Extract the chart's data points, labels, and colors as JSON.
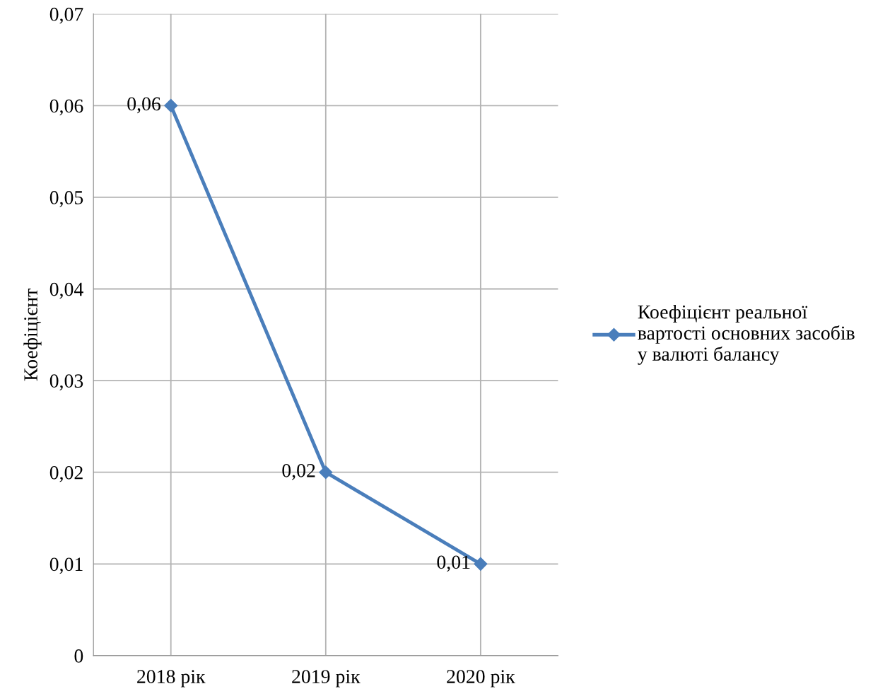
{
  "chart_data": {
    "type": "line",
    "ylabel": "Коефіцієнт",
    "categories": [
      "2018 рік",
      "2019 рік",
      "2020 рік"
    ],
    "series": [
      {
        "name": "Коефіцієнт реальної вартості основних засобів у валюті балансу",
        "color": "#4a7ebb",
        "values": [
          0.06,
          0.02,
          0.01
        ],
        "value_labels": [
          "0,06",
          "0,02",
          "0,01"
        ]
      }
    ],
    "ylim": [
      0,
      0.07
    ],
    "yticks": [
      {
        "value": 0,
        "label": "0"
      },
      {
        "value": 0.01,
        "label": "0,01"
      },
      {
        "value": 0.02,
        "label": "0,02"
      },
      {
        "value": 0.03,
        "label": "0,03"
      },
      {
        "value": 0.04,
        "label": "0,04"
      },
      {
        "value": 0.05,
        "label": "0,05"
      },
      {
        "value": 0.06,
        "label": "0,06"
      },
      {
        "value": 0.07,
        "label": "0,07"
      }
    ],
    "grid": true,
    "legend": "right",
    "marker": "diamond",
    "line_style": "solid"
  }
}
